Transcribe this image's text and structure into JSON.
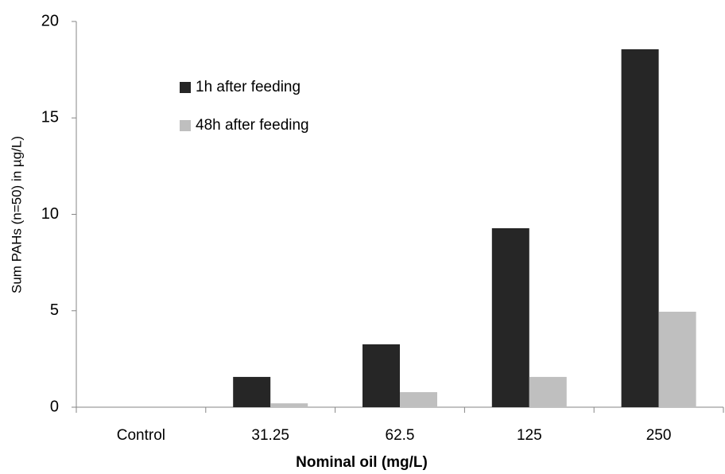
{
  "chart_data": {
    "type": "bar",
    "x_label": "Nominal oil (mg/L)",
    "y_label": "Sum PAHs (n=50) in µg/L)",
    "categories": [
      "Control",
      "31.25",
      "62.5",
      "125",
      "250"
    ],
    "series": [
      {
        "name": "1h after feeding",
        "color": "#262626",
        "values": [
          0,
          1.57,
          3.26,
          9.28,
          18.56
        ]
      },
      {
        "name": "48h after feeding",
        "color": "#bfbfbf",
        "values": [
          0,
          0.2,
          0.78,
          1.57,
          4.95
        ]
      }
    ],
    "ylim": [
      0,
      20
    ],
    "yticks": [
      0,
      5,
      10,
      15,
      20
    ],
    "grid": false,
    "legend": "upper left"
  }
}
